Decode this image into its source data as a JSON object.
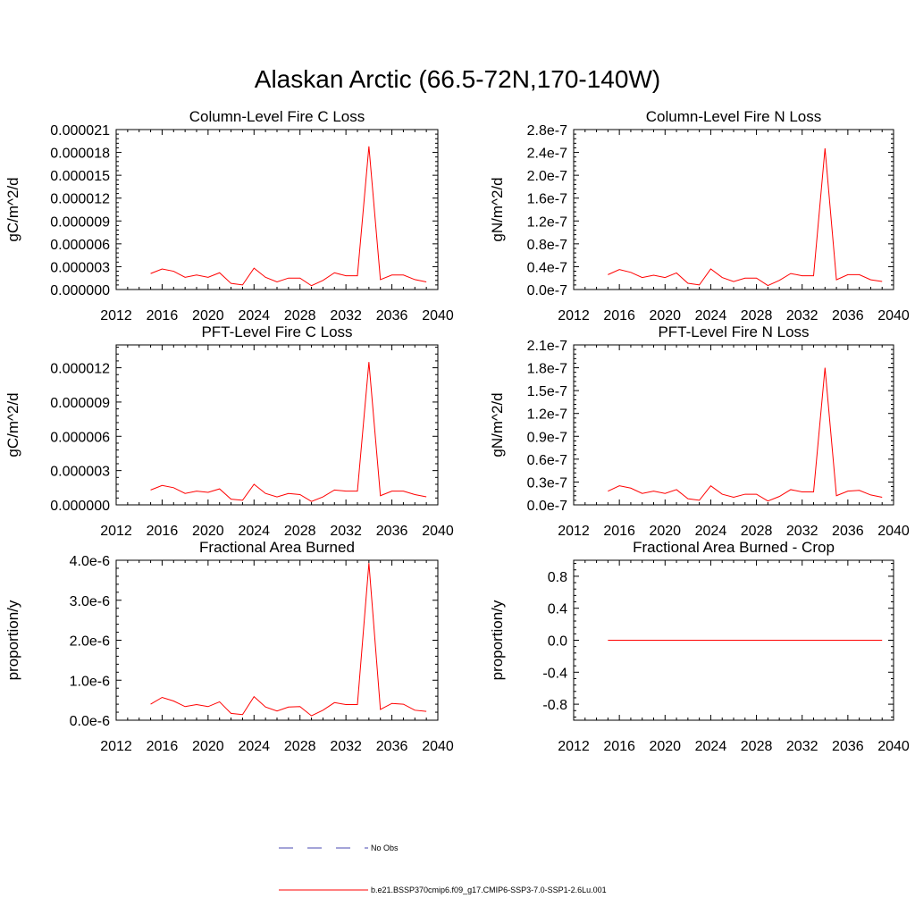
{
  "title": "Alaskan Arctic (66.5-72N,170-140W)",
  "x_years": [
    2015,
    2016,
    2017,
    2018,
    2019,
    2020,
    2021,
    2022,
    2023,
    2024,
    2025,
    2026,
    2027,
    2028,
    2029,
    2030,
    2031,
    2032,
    2033,
    2034,
    2035,
    2036,
    2037,
    2038,
    2039
  ],
  "chart_data": [
    {
      "type": "line",
      "title": "Column-Level Fire C Loss",
      "ylabel": "gC/m^2/d",
      "xlim": [
        2012,
        2040
      ],
      "xticks": [
        "2012",
        "2016",
        "2020",
        "2024",
        "2028",
        "2032",
        "2036",
        "2040"
      ],
      "ylim": [
        0,
        2.1e-05
      ],
      "yticks": [
        "0.000000",
        "0.000003",
        "0.000006",
        "0.000009",
        "0.000012",
        "0.000015",
        "0.000018",
        "0.000021"
      ],
      "series": [
        {
          "values": [
            2.1e-06,
            2.7e-06,
            2.4e-06,
            1.6e-06,
            1.9e-06,
            1.6e-06,
            2.2e-06,
            8e-07,
            6e-07,
            2.8e-06,
            1.6e-06,
            1e-06,
            1.5e-06,
            1.5e-06,
            5e-07,
            1.2e-06,
            2.2e-06,
            1.8e-06,
            1.8e-06,
            1.88e-05,
            1.3e-06,
            1.9e-06,
            1.9e-06,
            1.3e-06,
            1e-06
          ]
        }
      ]
    },
    {
      "type": "line",
      "title": "Column-Level Fire N Loss",
      "ylabel": "gN/m^2/d",
      "xlim": [
        2012,
        2040
      ],
      "xticks": [
        "2012",
        "2016",
        "2020",
        "2024",
        "2028",
        "2032",
        "2036",
        "2040"
      ],
      "ylim": [
        0,
        2.8e-07
      ],
      "yticks": [
        "0.0e-7",
        "0.4e-7",
        "0.8e-7",
        "1.2e-7",
        "1.6e-7",
        "2.0e-7",
        "2.4e-7",
        "2.8e-7"
      ],
      "series": [
        {
          "values": [
            2.6e-08,
            3.5e-08,
            3e-08,
            2.1e-08,
            2.5e-08,
            2.1e-08,
            2.9e-08,
            1.1e-08,
            8e-09,
            3.6e-08,
            2.1e-08,
            1.4e-08,
            2e-08,
            2e-08,
            7e-09,
            1.6e-08,
            2.8e-08,
            2.4e-08,
            2.4e-08,
            2.47e-07,
            1.7e-08,
            2.6e-08,
            2.6e-08,
            1.7e-08,
            1.4e-08
          ]
        }
      ]
    },
    {
      "type": "line",
      "title": "PFT-Level Fire C Loss",
      "ylabel": "gC/m^2/d",
      "xlim": [
        2012,
        2040
      ],
      "xticks": [
        "2012",
        "2016",
        "2020",
        "2024",
        "2028",
        "2032",
        "2036",
        "2040"
      ],
      "ylim": [
        0,
        1.4e-05
      ],
      "yticks": [
        "0.000000",
        "0.000003",
        "0.000006",
        "0.000009",
        "0.000012"
      ],
      "series": [
        {
          "values": [
            1.3e-06,
            1.7e-06,
            1.5e-06,
            1e-06,
            1.2e-06,
            1.1e-06,
            1.4e-06,
            5e-07,
            4e-07,
            1.8e-06,
            1e-06,
            7e-07,
            1e-06,
            9e-07,
            3e-07,
            7e-07,
            1.3e-06,
            1.2e-06,
            1.2e-06,
            1.25e-05,
            8e-07,
            1.2e-06,
            1.2e-06,
            9e-07,
            7e-07
          ]
        }
      ]
    },
    {
      "type": "line",
      "title": "PFT-Level Fire N Loss",
      "ylabel": "gN/m^2/d",
      "xlim": [
        2012,
        2040
      ],
      "xticks": [
        "2012",
        "2016",
        "2020",
        "2024",
        "2028",
        "2032",
        "2036",
        "2040"
      ],
      "ylim": [
        0,
        2.1e-07
      ],
      "yticks": [
        "0.0e-7",
        "0.3e-7",
        "0.6e-7",
        "0.9e-7",
        "1.2e-7",
        "1.5e-7",
        "1.8e-7",
        "2.1e-7"
      ],
      "series": [
        {
          "values": [
            1.8e-08,
            2.5e-08,
            2.2e-08,
            1.5e-08,
            1.8e-08,
            1.5e-08,
            2e-08,
            8e-09,
            6e-09,
            2.5e-08,
            1.4e-08,
            1e-08,
            1.4e-08,
            1.4e-08,
            5e-09,
            1.1e-08,
            2e-08,
            1.7e-08,
            1.7e-08,
            1.8e-07,
            1.2e-08,
            1.8e-08,
            1.9e-08,
            1.3e-08,
            1e-08
          ]
        }
      ]
    },
    {
      "type": "line",
      "title": "Fractional Area Burned",
      "ylabel": "proportion/y",
      "xlim": [
        2012,
        2040
      ],
      "xticks": [
        "2012",
        "2016",
        "2020",
        "2024",
        "2028",
        "2032",
        "2036",
        "2040"
      ],
      "ylim": [
        0,
        4e-06
      ],
      "yticks": [
        "0.0e-6",
        "1.0e-6",
        "2.0e-6",
        "3.0e-6",
        "4.0e-6"
      ],
      "series": [
        {
          "values": [
            4e-07,
            5.7e-07,
            4.8e-07,
            3.4e-07,
            3.9e-07,
            3.4e-07,
            4.6e-07,
            1.7e-07,
            1.4e-07,
            5.9e-07,
            3.3e-07,
            2.3e-07,
            3.3e-07,
            3.4e-07,
            1.1e-07,
            2.5e-07,
            4.4e-07,
            3.9e-07,
            3.9e-07,
            3.93e-06,
            2.7e-07,
            4.2e-07,
            4e-07,
            2.5e-07,
            2.2e-07
          ]
        }
      ]
    },
    {
      "type": "line",
      "title": "Fractional Area Burned - Crop",
      "ylabel": "proportion/y",
      "xlim": [
        2012,
        2040
      ],
      "xticks": [
        "2012",
        "2016",
        "2020",
        "2024",
        "2028",
        "2032",
        "2036",
        "2040"
      ],
      "ylim": [
        -1.0,
        1.0
      ],
      "yticks": [
        "-0.8",
        "-0.4",
        "0.0",
        "0.4",
        "0.8"
      ],
      "series": [
        {
          "values": [
            0,
            0,
            0,
            0,
            0,
            0,
            0,
            0,
            0,
            0,
            0,
            0,
            0,
            0,
            0,
            0,
            0,
            0,
            0,
            0,
            0,
            0,
            0,
            0,
            0
          ]
        }
      ]
    }
  ],
  "legend": {
    "entries": [
      {
        "label": "No Obs",
        "color": "#4a4ab0",
        "dash": "dashed"
      },
      {
        "label": "b.e21.BSSP370cmip6.f09_g17.CMIP6-SSP3-7.0-SSP1-2.6Lu.001",
        "color": "#ff0000",
        "dash": "solid"
      }
    ]
  },
  "colors": {
    "series": "#ff0000",
    "axis": "#000000"
  }
}
